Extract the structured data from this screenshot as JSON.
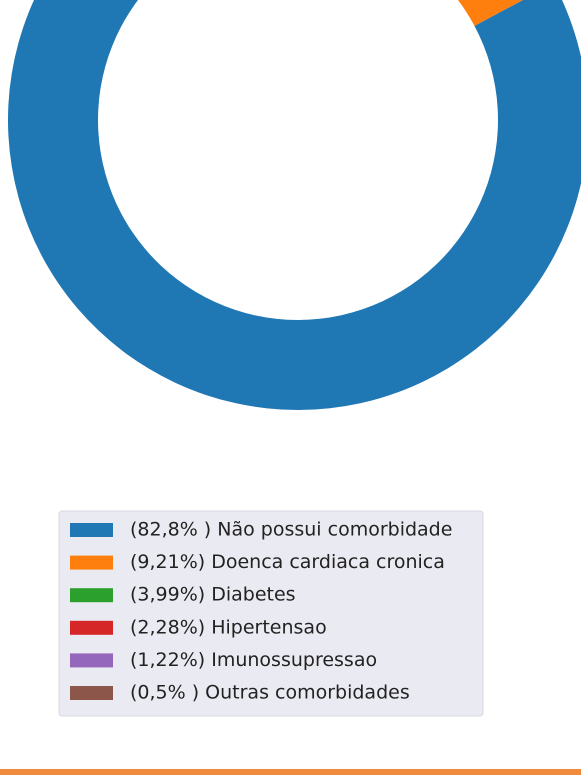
{
  "chart_data": {
    "type": "donut",
    "categories": [
      "(82,8% ) Não possui comorbidade",
      "(9,21%) Doenca cardiaca cronica",
      "(3,99%) Diabetes",
      "(2,28%) Hipertensao",
      "(1,22%) Imunossupressao",
      "(0,5% ) Outras comorbidades"
    ],
    "values": [
      82.8,
      9.21,
      3.99,
      2.28,
      1.22,
      0.5
    ],
    "colors": [
      "#1f77b4",
      "#ff7f0e",
      "#2ca02c",
      "#d62728",
      "#9467bd",
      "#8c564b"
    ]
  }
}
